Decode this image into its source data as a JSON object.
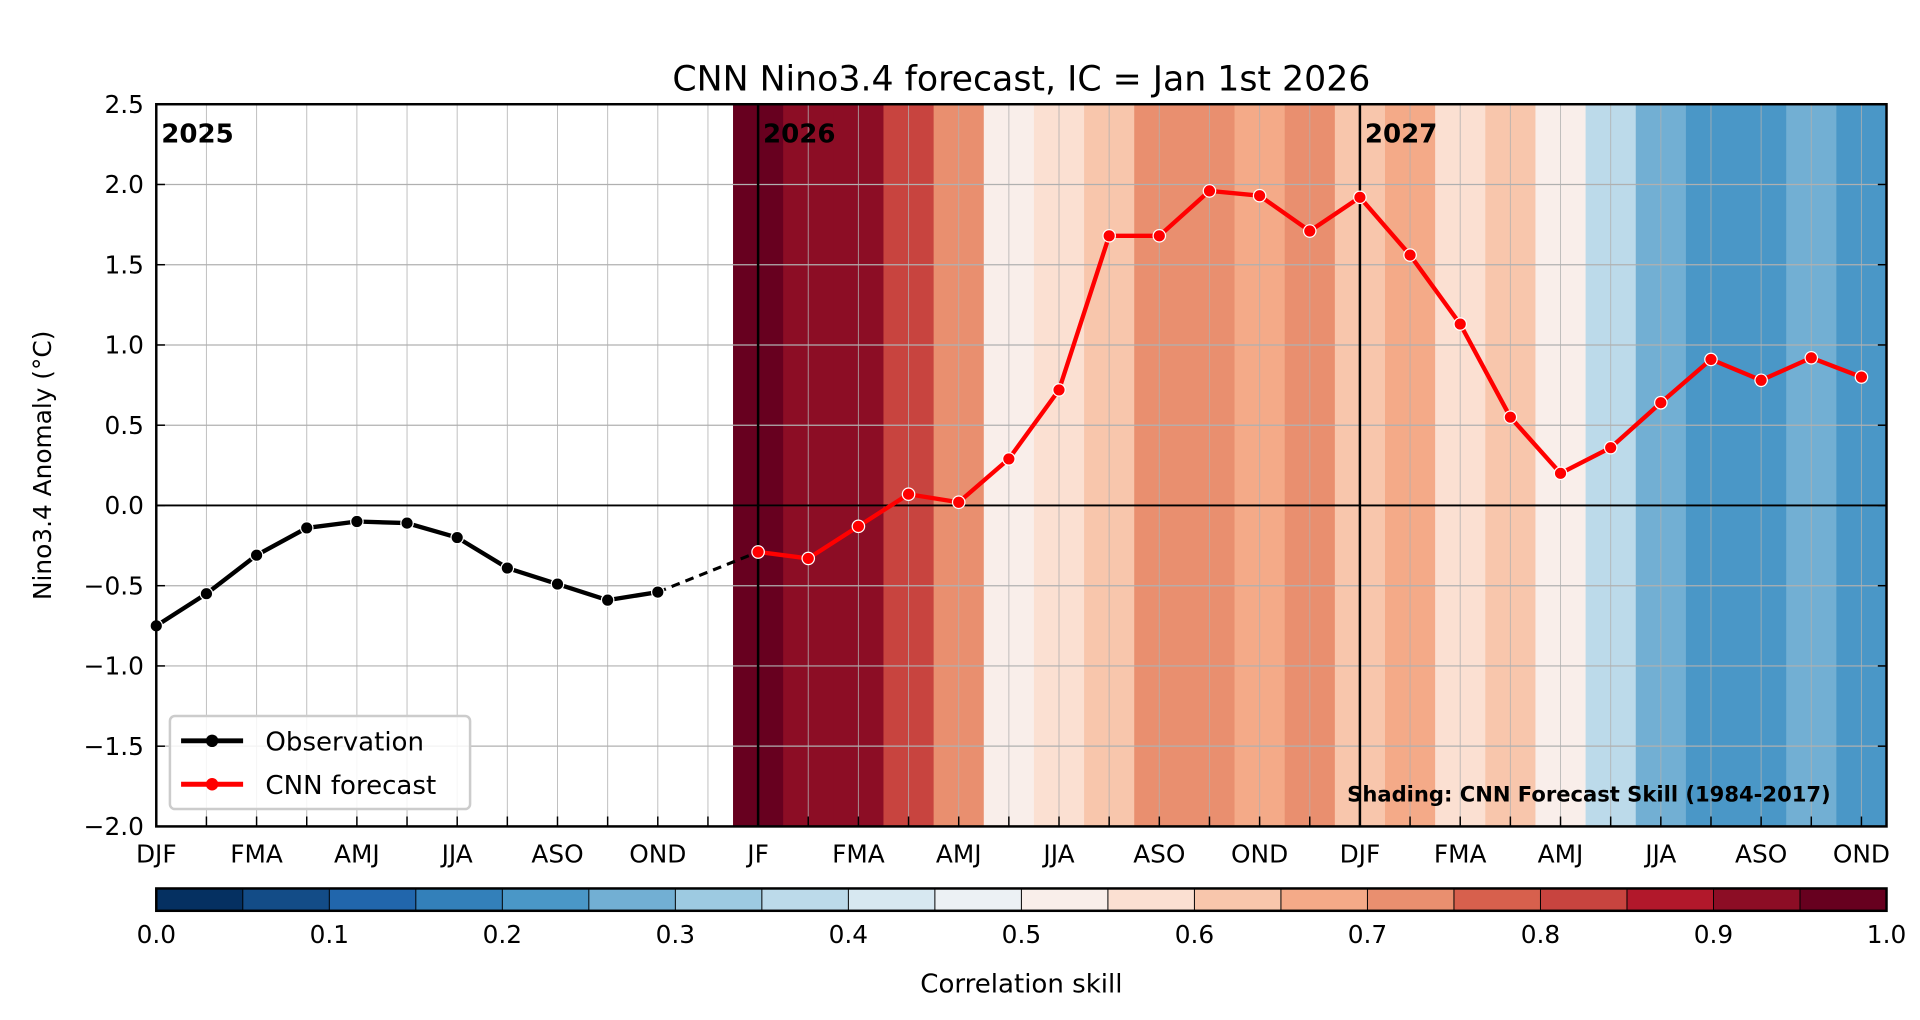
{
  "chart_data": {
    "type": "line",
    "title": "CNN Nino3.4 forecast, IC = Jan 1st 2026",
    "ylabel": "Nino3.4 Anomaly (°C)",
    "xlabel": "",
    "ylim": [
      -2.0,
      2.5
    ],
    "yticks": [
      "2.5",
      "2.0",
      "1.5",
      "1.0",
      "0.5",
      "0.0",
      "−0.5",
      "−1.0",
      "−1.5",
      "−2.0"
    ],
    "ytick_values": [
      2.5,
      2.0,
      1.5,
      1.0,
      0.5,
      0.0,
      -0.5,
      -1.0,
      -1.5,
      -2.0
    ],
    "xlim": [
      0,
      34.5
    ],
    "xtick_labels": [
      "DJF",
      "FMA",
      "AMJ",
      "JJA",
      "ASO",
      "OND",
      "JF",
      "FMA",
      "AMJ",
      "JJA",
      "ASO",
      "OND",
      "DJF",
      "FMA",
      "AMJ",
      "JJA",
      "ASO",
      "OND"
    ],
    "year_labels": [
      {
        "text": "2025",
        "index": 0
      },
      {
        "text": "2026",
        "index": 12
      },
      {
        "text": "2027",
        "index": 24
      }
    ],
    "year_boundaries": [
      12,
      24
    ],
    "grid": true,
    "series": [
      {
        "name": "Observation",
        "color": "#000000",
        "start_index": 0,
        "values": [
          -0.75,
          -0.55,
          -0.31,
          -0.14,
          -0.1,
          -0.11,
          -0.2,
          -0.39,
          -0.49,
          -0.59,
          -0.54
        ]
      },
      {
        "name": "CNN forecast",
        "color": "#ff0000",
        "start_index": 12,
        "values": [
          -0.29,
          -0.33,
          -0.13,
          0.07,
          0.02,
          0.29,
          0.72,
          1.68,
          1.68,
          1.96,
          1.93,
          1.71,
          1.92,
          1.56,
          1.13,
          0.55,
          0.2,
          0.36,
          0.64,
          0.91,
          0.78,
          0.92,
          0.8
        ]
      }
    ],
    "skill": {
      "start_index": 12,
      "values": [
        0.975,
        0.925,
        0.925,
        0.825,
        0.725,
        0.525,
        0.575,
        0.625,
        0.725,
        0.725,
        0.675,
        0.725,
        0.625,
        0.675,
        0.575,
        0.625,
        0.525,
        0.375,
        0.275,
        0.225,
        0.225,
        0.275,
        0.225
      ]
    },
    "legend": {
      "placement": "lower-left",
      "entries": [
        "Observation",
        "CNN forecast"
      ]
    },
    "annotation": "Shading: CNN Forecast Skill (1984-2017)",
    "colorbar": {
      "label": "Correlation skill",
      "range": [
        0.0,
        1.0
      ],
      "tick_labels": [
        "0.0",
        "0.1",
        "0.2",
        "0.3",
        "0.4",
        "0.5",
        "0.6",
        "0.7",
        "0.8",
        "0.9",
        "1.0"
      ],
      "colors": [
        "#053061",
        "#134c87",
        "#2166ac",
        "#3380ba",
        "#4a97c7",
        "#72afd3",
        "#9dcae1",
        "#bcdaea",
        "#d7e8f1",
        "#ecf1f4",
        "#f9eeea",
        "#fbe0d2",
        "#f8c6ac",
        "#f4aa88",
        "#e98f6f",
        "#d7604d",
        "#c8443f",
        "#b2182b",
        "#8c0d25",
        "#67001f"
      ]
    }
  }
}
